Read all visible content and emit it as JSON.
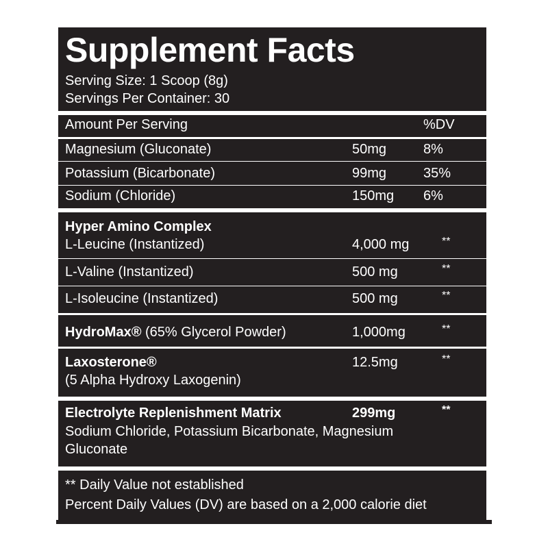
{
  "title": "Supplement Facts",
  "serving_size": "Serving Size: 1 Scoop (8g)",
  "servings_per_container": "Servings Per Container: 30",
  "header": {
    "amount_label": "Amount Per Serving",
    "dv_label": "%DV"
  },
  "minerals": [
    {
      "name": "Magnesium (Gluconate)",
      "amount": "50mg",
      "dv": "8%"
    },
    {
      "name": "Potassium (Bicarbonate)",
      "amount": "99mg",
      "dv": "35%"
    },
    {
      "name": "Sodium (Chloride)",
      "amount": "150mg",
      "dv": "6%"
    }
  ],
  "amino": {
    "title": "Hyper Amino Complex",
    "items": [
      {
        "name": "L-Leucine (Instantized)",
        "amount": "4,000 mg",
        "dv": "**"
      },
      {
        "name": "L-Valine (Instantized)",
        "amount": "500 mg",
        "dv": "**"
      },
      {
        "name": "L-Isoleucine (Instantized)",
        "amount": "500 mg",
        "dv": "**"
      }
    ]
  },
  "hydromax": {
    "name_bold": "HydroMax®",
    "name_rest": " (65% Glycerol Powder)",
    "amount": "1,000mg",
    "dv": "**"
  },
  "laxosterone": {
    "name": "Laxosterone®",
    "subtitle": "(5 Alpha Hydroxy Laxogenin)",
    "amount": "12.5mg",
    "dv": "**"
  },
  "electrolyte": {
    "name": "Electrolyte Replenishment Matrix",
    "amount": "299mg",
    "dv": "**",
    "line1": "Sodium Chloride, Potassium Bicarbonate, Magnesium",
    "line2": "Gluconate"
  },
  "footnotes": {
    "dv_note": "** Daily Value not established",
    "percent_note": "Percent Daily Values (DV) are based on a 2,000 calorie diet"
  }
}
